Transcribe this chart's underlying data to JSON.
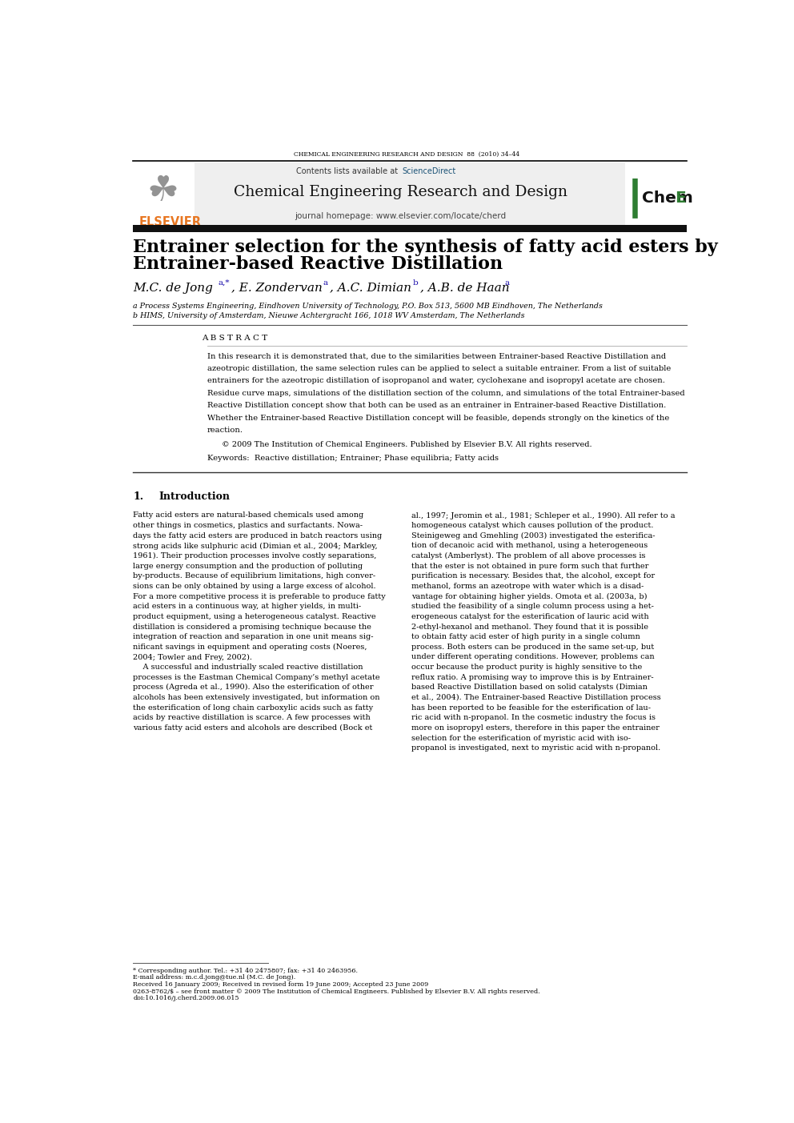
{
  "page_width": 9.92,
  "page_height": 14.03,
  "background_color": "#ffffff",
  "top_journal_line": "CHEMICAL ENGINEERING RESEARCH AND DESIGN  88  (2010) 34–44",
  "header_bg": "#f0f0f0",
  "journal_title": "Chemical Engineering Research and Design",
  "journal_url": "journal homepage: www.elsevier.com/locate/cherd",
  "contents_text": "Contents lists available at ",
  "contents_link": "ScienceDirect",
  "elsevier_text": "ELSEVIER",
  "paper_title_line1": "Entrainer selection for the synthesis of fatty acid esters by",
  "paper_title_line2": "Entrainer-based Reactive Distillation",
  "affil_a": "a Process Systems Engineering, Eindhoven University of Technology, P.O. Box 513, 5600 MB Eindhoven, The Netherlands",
  "affil_b": "b HIMS, University of Amsterdam, Nieuwe Achtergracht 166, 1018 WV Amsterdam, The Netherlands",
  "abstract_header": "A B S T R A C T",
  "abstract_text": "In this research it is demonstrated that, due to the similarities between Entrainer-based Reactive Distillation and\nazeotropic distillation, the same selection rules can be applied to select a suitable entrainer. From a list of suitable\nentrainers for the azeotropic distillation of isopropanol and water, cyclohexane and isopropyl acetate are chosen.\nResidue curve maps, simulations of the distillation section of the column, and simulations of the total Entrainer-based\nReactive Distillation concept show that both can be used as an entrainer in Entrainer-based Reactive Distillation.\nWhether the Entrainer-based Reactive Distillation concept will be feasible, depends strongly on the kinetics of the\nreaction.",
  "copyright_text": "© 2009 The Institution of Chemical Engineers. Published by Elsevier B.V. All rights reserved.",
  "keywords_text": "Keywords:  Reactive distillation; Entrainer; Phase equilibria; Fatty acids",
  "section1_num": "1.",
  "section1_title": "Introduction",
  "intro_col1": "Fatty acid esters are natural-based chemicals used among\nother things in cosmetics, plastics and surfactants. Nowa-\ndays the fatty acid esters are produced in batch reactors using\nstrong acids like sulphuric acid (Dimian et al., 2004; Markley,\n1961). Their production processes involve costly separations,\nlarge energy consumption and the production of polluting\nby-products. Because of equilibrium limitations, high conver-\nsions can be only obtained by using a large excess of alcohol.\nFor a more competitive process it is preferable to produce fatty\nacid esters in a continuous way, at higher yields, in multi-\nproduct equipment, using a heterogeneous catalyst. Reactive\ndistillation is considered a promising technique because the\nintegration of reaction and separation in one unit means sig-\nnificant savings in equipment and operating costs (Noeres,\n2004; Towler and Frey, 2002).\n    A successful and industrially scaled reactive distillation\nprocesses is the Eastman Chemical Company’s methyl acetate\nprocess (Agreda et al., 1990). Also the esterification of other\nalcohols has been extensively investigated, but information on\nthe esterification of long chain carboxylic acids such as fatty\nacids by reactive distillation is scarce. A few processes with\nvarious fatty acid esters and alcohols are described (Bock et",
  "intro_col2": "al., 1997; Jeromin et al., 1981; Schleper et al., 1990). All refer to a\nhomogeneous catalyst which causes pollution of the product.\nSteinigeweg and Gmehling (2003) investigated the esterifica-\ntion of decanoic acid with methanol, using a heterogeneous\ncatalyst (Amberlyst). The problem of all above processes is\nthat the ester is not obtained in pure form such that further\npurification is necessary. Besides that, the alcohol, except for\nmethanol, forms an azeotrope with water which is a disad-\nvantage for obtaining higher yields. Omota et al. (2003a, b)\nstudied the feasibility of a single column process using a het-\nerogeneous catalyst for the esterification of lauric acid with\n2-ethyl-hexanol and methanol. They found that it is possible\nto obtain fatty acid ester of high purity in a single column\nprocess. Both esters can be produced in the same set-up, but\nunder different operating conditions. However, problems can\noccur because the product purity is highly sensitive to the\nreflux ratio. A promising way to improve this is by Entrainer-\nbased Reactive Distillation based on solid catalysts (Dimian\net al., 2004). The Entrainer-based Reactive Distillation process\nhas been reported to be feasible for the esterification of lau-\nric acid with n-propanol. In the cosmetic industry the focus is\nmore on isopropyl esters, therefore in this paper the entrainer\nselection for the esterification of myristic acid with iso-\npropanol is investigated, next to myristic acid with n-propanol.",
  "footnote_star": "* Corresponding author. Tel.: +31 40 2475807; fax: +31 40 2463956.",
  "footnote_email": "E-mail address: m.c.d.jong@tue.nl (M.C. de Jong).",
  "footnote_received": "Received 16 January 2009; Received in revised form 19 June 2009; Accepted 23 June 2009",
  "footnote_issn": "0263-8762/$ – see front matter © 2009 The Institution of Chemical Engineers. Published by Elsevier B.V. All rights reserved.",
  "footnote_doi": "doi:10.1016/j.cherd.2009.06.015",
  "color_orange": "#E87722",
  "color_icheme_green": "#2e7d32",
  "color_dark_bar": "#1a1a1a",
  "color_text": "#000000",
  "color_link": "#1a0dab",
  "color_link2": "#1a5276"
}
